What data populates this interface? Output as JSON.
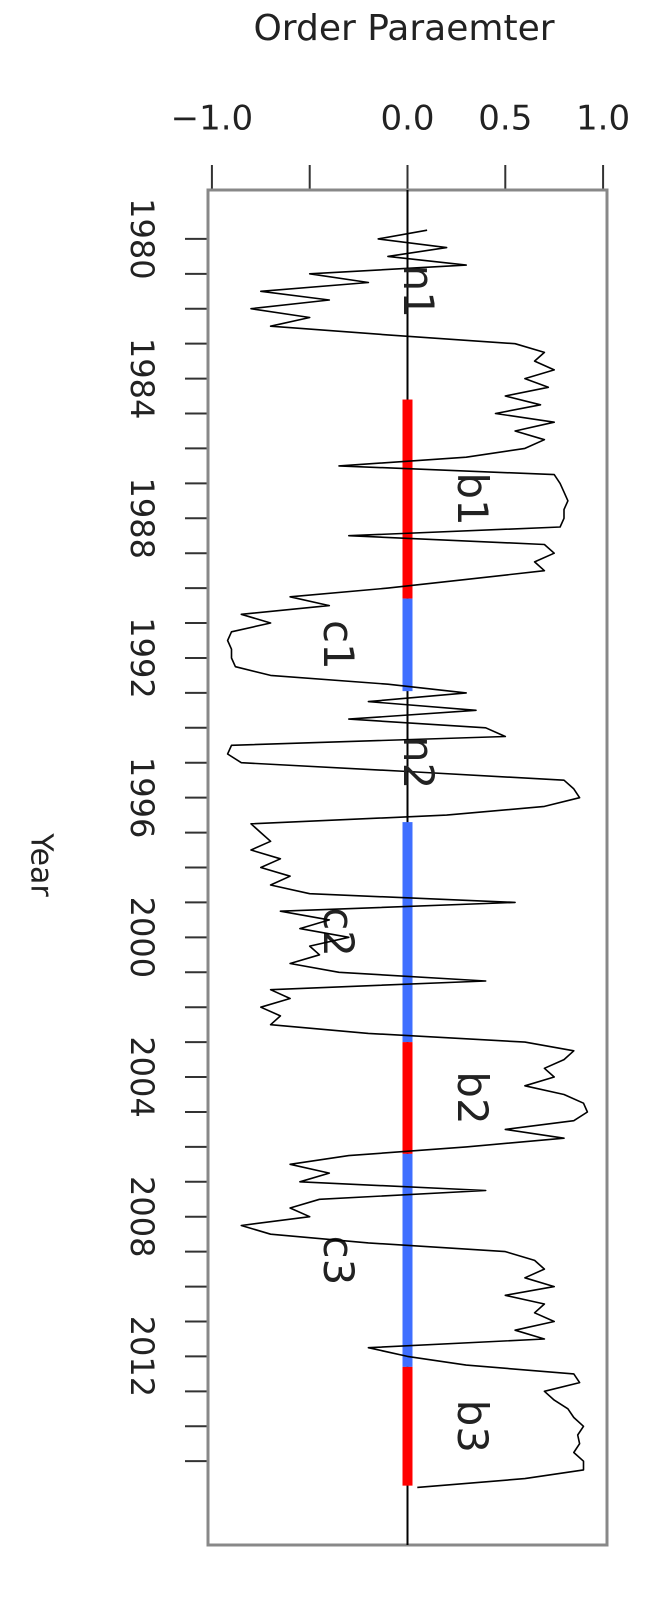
{
  "chart_data": {
    "type": "line",
    "title": "Order Paraemter",
    "ylabel": "Year",
    "xlim": [
      -1.02,
      1.02
    ],
    "xticks": [
      {
        "value": -1,
        "label": "−1.0"
      },
      {
        "value": 0,
        "label": "0.0"
      },
      0.5,
      {
        "value": 1,
        "label": "1.0"
      }
    ],
    "xminorticks": [
      -0.5
    ],
    "ylim": [
      1978.6,
      2017.4
    ],
    "yticks": [
      1980,
      1984,
      1988,
      1992,
      1996,
      2000,
      2004,
      2008,
      2012
    ],
    "yminorticks": [
      1981,
      1982,
      1983,
      1985,
      1986,
      1987,
      1989,
      1990,
      1991,
      1993,
      1994,
      1995,
      1997,
      1998,
      1999,
      2001,
      2002,
      2003,
      2005,
      2006,
      2007,
      2009,
      2010,
      2011,
      2013,
      2014,
      2015
    ],
    "series": [
      {
        "color": "#000000",
        "x": [
          1979.75,
          1980,
          1980.25,
          1980.5,
          1980.75,
          1981,
          1981.25,
          1981.5,
          1981.75,
          1982,
          1982.25,
          1982.5,
          1982.75,
          1983,
          1983.25,
          1983.5,
          1983.75,
          1984,
          1984.25,
          1984.5,
          1984.75,
          1985,
          1985.25,
          1985.5,
          1985.75,
          1986,
          1986.25,
          1986.5,
          1986.75,
          1987,
          1987.25,
          1987.5,
          1987.75,
          1988,
          1988.25,
          1988.5,
          1988.75,
          1989,
          1989.25,
          1989.5,
          1989.75,
          1990,
          1990.25,
          1990.5,
          1990.75,
          1991,
          1991.25,
          1991.5,
          1991.75,
          1992,
          1992.25,
          1992.5,
          1992.75,
          1993,
          1993.25,
          1993.5,
          1993.75,
          1994,
          1994.25,
          1994.5,
          1994.75,
          1995,
          1995.25,
          1995.5,
          1995.75,
          1996,
          1996.25,
          1996.5,
          1996.75,
          1997,
          1997.25,
          1997.5,
          1997.75,
          1998,
          1998.25,
          1998.5,
          1998.75,
          1999,
          1999.25,
          1999.5,
          1999.75,
          2000,
          2000.25,
          2000.5,
          2000.75,
          2001,
          2001.25,
          2001.5,
          2001.75,
          2002,
          2002.25,
          2002.5,
          2002.75,
          2003,
          2003.25,
          2003.5,
          2003.75,
          2004,
          2004.25,
          2004.5,
          2004.75,
          2005,
          2005.25,
          2005.5,
          2005.75,
          2006,
          2006.25,
          2006.5,
          2006.75,
          2007,
          2007.25,
          2007.5,
          2007.75,
          2008,
          2008.25,
          2008.5,
          2008.75,
          2009,
          2009.25,
          2009.5,
          2009.75,
          2010,
          2010.25,
          2010.5,
          2010.75,
          2011,
          2011.25,
          2011.5,
          2011.75,
          2012,
          2012.25,
          2012.5,
          2012.75,
          2013,
          2013.25,
          2013.5,
          2013.75,
          2014,
          2014.25,
          2014.5,
          2014.75,
          2015,
          2015.25,
          2015.5,
          2015.75
        ],
        "values": [
          0.1,
          -0.15,
          0.2,
          -0.1,
          0.3,
          -0.5,
          -0.2,
          -0.75,
          -0.4,
          -0.8,
          -0.5,
          -0.7,
          -0.1,
          0.55,
          0.7,
          0.65,
          0.75,
          0.6,
          0.72,
          0.5,
          0.68,
          0.45,
          0.75,
          0.55,
          0.7,
          0.6,
          0.3,
          -0.35,
          0.75,
          0.78,
          0.8,
          0.82,
          0.8,
          0.8,
          0.78,
          -0.3,
          0.7,
          0.75,
          0.65,
          0.7,
          0.3,
          -0.1,
          -0.6,
          -0.4,
          -0.85,
          -0.7,
          -0.9,
          -0.92,
          -0.9,
          -0.9,
          -0.88,
          -0.7,
          -0.1,
          0.3,
          -0.2,
          0.35,
          -0.3,
          0.4,
          0.5,
          -0.9,
          -0.92,
          -0.85,
          0.0,
          0.8,
          0.85,
          0.88,
          0.7,
          0.2,
          -0.8,
          -0.75,
          -0.7,
          -0.8,
          -0.65,
          -0.75,
          -0.6,
          -0.7,
          -0.5,
          0.55,
          -0.65,
          -0.4,
          -0.55,
          -0.3,
          -0.5,
          -0.45,
          -0.6,
          -0.35,
          0.4,
          -0.7,
          -0.6,
          -0.75,
          -0.65,
          -0.7,
          -0.2,
          0.6,
          0.85,
          0.8,
          0.7,
          0.75,
          0.6,
          0.8,
          0.9,
          0.92,
          0.85,
          0.5,
          0.8,
          0.3,
          -0.3,
          -0.6,
          -0.4,
          -0.55,
          0.4,
          -0.45,
          -0.6,
          -0.5,
          -0.85,
          -0.7,
          -0.2,
          0.5,
          0.65,
          0.7,
          0.6,
          0.75,
          0.5,
          0.7,
          0.65,
          0.75,
          0.55,
          0.7,
          -0.2,
          0.0,
          0.3,
          0.85,
          0.88,
          0.7,
          0.75,
          0.82,
          0.85,
          0.9,
          0.87,
          0.88,
          0.85,
          0.9,
          0.9,
          0.6,
          0.05
        ]
      }
    ],
    "segments": [
      {
        "label": "b1",
        "color": "#ff0000",
        "start": 1984.6,
        "end": 1990.3
      },
      {
        "label": "c1",
        "color": "#3f6fff",
        "start": 1990.3,
        "end": 1992.95
      },
      {
        "label": "c2",
        "color": "#3f6fff",
        "start": 1996.7,
        "end": 2003.0
      },
      {
        "label": "b2",
        "color": "#ff0000",
        "start": 2003.0,
        "end": 2006.2
      },
      {
        "label": "c3",
        "color": "#3f6fff",
        "start": 2006.2,
        "end": 2012.3
      },
      {
        "label": "b3",
        "color": "#ff0000",
        "start": 2012.3,
        "end": 2015.7
      }
    ],
    "annotations": [
      {
        "text": "n1",
        "x": 0,
        "y": 1981.5
      },
      {
        "text": "n2",
        "x": 0,
        "y": 1995.0
      }
    ]
  }
}
